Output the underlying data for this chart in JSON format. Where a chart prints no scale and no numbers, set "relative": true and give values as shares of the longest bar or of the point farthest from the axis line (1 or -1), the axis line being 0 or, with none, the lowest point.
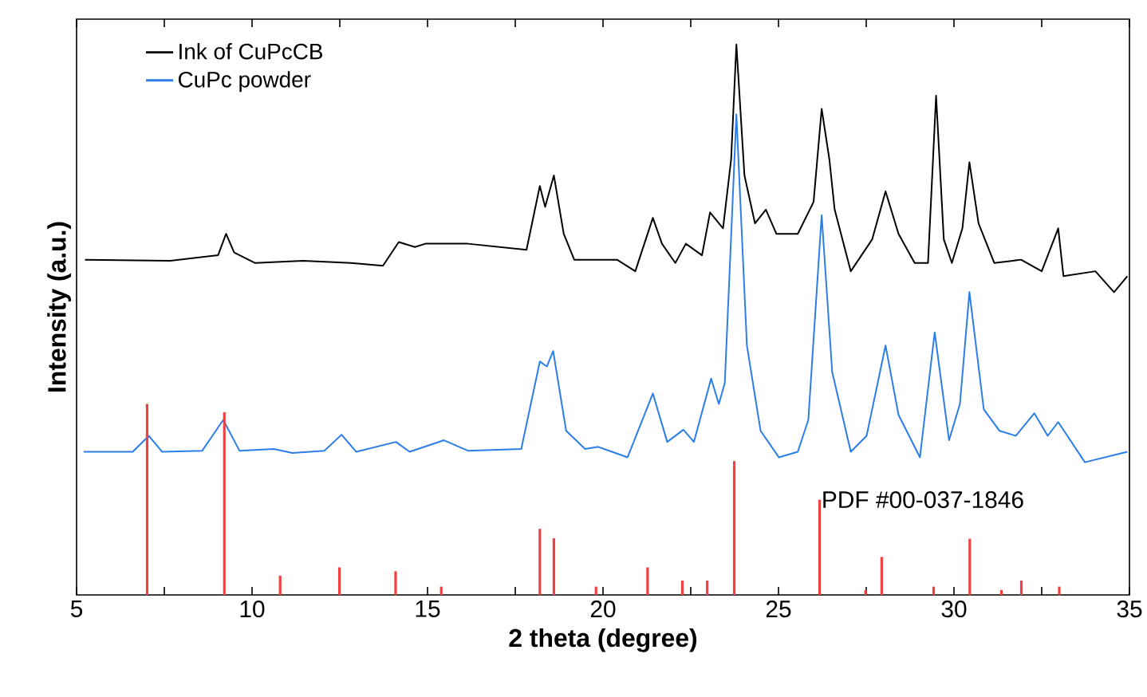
{
  "chart_data": {
    "type": "line",
    "relative": true,
    "xlabel": "2 theta (degree)",
    "ylabel": "Intensity (a.u.)",
    "xlim": [
      5,
      35
    ],
    "xticks": [
      5,
      {
        "value": 7.5,
        "label": null
      },
      10,
      {
        "value": 12.5,
        "label": null
      },
      15,
      {
        "value": 17.5,
        "label": null
      },
      20,
      {
        "value": 22.5,
        "label": null
      },
      25,
      {
        "value": 27.5,
        "label": null
      },
      30,
      {
        "value": 32.5,
        "label": null
      },
      35
    ],
    "legend": "top left",
    "series": [
      {
        "name": "Ink of CuPcCB",
        "color": "#000000",
        "x": [
          5.24,
          7.67,
          9.03,
          9.26,
          9.49,
          10.09,
          11.45,
          12.82,
          13.73,
          14.18,
          14.64,
          14.94,
          16.15,
          17.82,
          18.2,
          18.35,
          18.6,
          18.88,
          19.18,
          20.4,
          20.92,
          21.42,
          21.68,
          22.06,
          22.36,
          22.82,
          23.05,
          23.42,
          23.65,
          23.8,
          24.03,
          24.33,
          24.64,
          24.94,
          25.55,
          26.0,
          26.23,
          26.45,
          26.6,
          27.06,
          27.67,
          28.05,
          28.42,
          28.88,
          29.26,
          29.49,
          29.71,
          29.94,
          30.24,
          30.44,
          30.7,
          31.15,
          31.91,
          32.5,
          32.97,
          33.12,
          34.03,
          34.56,
          34.94
        ],
        "values": [
          0.609,
          0.607,
          0.617,
          0.656,
          0.622,
          0.603,
          0.607,
          0.603,
          0.598,
          0.641,
          0.632,
          0.638,
          0.638,
          0.627,
          0.743,
          0.705,
          0.762,
          0.656,
          0.609,
          0.609,
          0.588,
          0.685,
          0.638,
          0.603,
          0.638,
          0.617,
          0.695,
          0.666,
          0.791,
          1.0,
          0.762,
          0.675,
          0.7,
          0.656,
          0.656,
          0.714,
          0.883,
          0.791,
          0.7,
          0.588,
          0.646,
          0.733,
          0.656,
          0.603,
          0.603,
          0.907,
          0.646,
          0.603,
          0.666,
          0.786,
          0.675,
          0.603,
          0.609,
          0.588,
          0.666,
          0.579,
          0.588,
          0.55,
          0.579
        ]
      },
      {
        "name": "CuPc powder",
        "color": "#2b7de9",
        "x": [
          5.2,
          6.6,
          7.06,
          7.44,
          8.58,
          9.18,
          9.64,
          10.62,
          11.15,
          12.06,
          12.55,
          12.97,
          14.1,
          14.49,
          15.47,
          16.15,
          17.67,
          18.2,
          18.4,
          18.58,
          18.95,
          19.49,
          19.86,
          20.7,
          21.42,
          21.83,
          22.29,
          22.59,
          23.08,
          23.3,
          23.47,
          23.8,
          24.1,
          24.49,
          25.01,
          25.55,
          25.85,
          26.23,
          26.53,
          27.06,
          27.51,
          28.05,
          28.42,
          29.03,
          29.45,
          29.86,
          30.17,
          30.44,
          30.85,
          31.3,
          31.76,
          32.29,
          32.67,
          32.97,
          33.73,
          34.94
        ],
        "values": [
          0.26,
          0.26,
          0.289,
          0.26,
          0.262,
          0.318,
          0.262,
          0.265,
          0.258,
          0.262,
          0.291,
          0.26,
          0.278,
          0.26,
          0.281,
          0.262,
          0.265,
          0.424,
          0.415,
          0.443,
          0.298,
          0.265,
          0.269,
          0.25,
          0.366,
          0.278,
          0.3,
          0.278,
          0.393,
          0.347,
          0.385,
          0.873,
          0.453,
          0.298,
          0.25,
          0.26,
          0.318,
          0.69,
          0.405,
          0.26,
          0.289,
          0.453,
          0.327,
          0.25,
          0.477,
          0.281,
          0.347,
          0.55,
          0.337,
          0.298,
          0.289,
          0.33,
          0.289,
          0.314,
          0.241,
          0.26
        ]
      },
      {
        "name": "PDF #00-037-1846",
        "type": "bar",
        "color": "#f04040",
        "x": [
          7.01,
          9.21,
          10.8,
          12.49,
          14.09,
          15.39,
          18.2,
          18.6,
          19.8,
          21.27,
          22.26,
          22.97,
          23.74,
          26.17,
          27.48,
          27.94,
          29.42,
          30.45,
          31.35,
          31.92,
          33.0
        ],
        "values": [
          0.347,
          0.332,
          0.035,
          0.05,
          0.043,
          0.015,
          0.12,
          0.103,
          0.015,
          0.05,
          0.026,
          0.026,
          0.243,
          0.173,
          0.009,
          0.069,
          0.015,
          0.102,
          0.009,
          0.026,
          0.015
        ]
      }
    ]
  }
}
